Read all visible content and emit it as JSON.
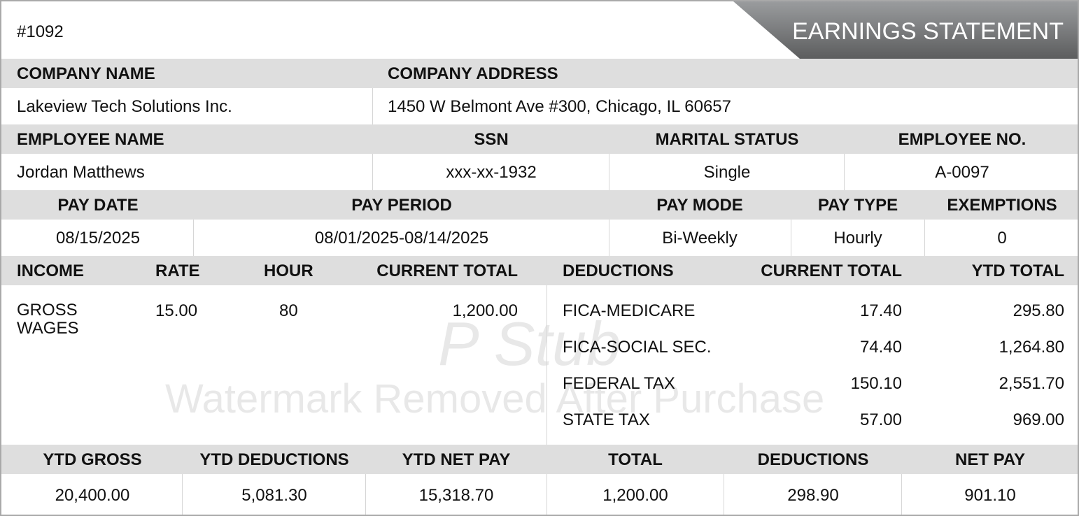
{
  "doc_number": "#1092",
  "title": "EARNINGS STATEMENT",
  "company": {
    "name_label": "COMPANY NAME",
    "address_label": "COMPANY ADDRESS",
    "name": "Lakeview Tech Solutions Inc.",
    "address": "1450 W Belmont Ave #300, Chicago, IL 60657"
  },
  "employee": {
    "name_label": "EMPLOYEE NAME",
    "ssn_label": "SSN",
    "marital_label": "MARITAL STATUS",
    "number_label": "EMPLOYEE NO.",
    "name": "Jordan Matthews",
    "ssn": "xxx-xx-1932",
    "marital": "Single",
    "number": "A-0097"
  },
  "pay": {
    "date_label": "PAY DATE",
    "period_label": "PAY PERIOD",
    "mode_label": "PAY MODE",
    "type_label": "PAY TYPE",
    "exemptions_label": "EXEMPTIONS",
    "date": "08/15/2025",
    "period": "08/01/2025-08/14/2025",
    "mode": "Bi-Weekly",
    "type": "Hourly",
    "exemptions": "0"
  },
  "income": {
    "headers": [
      "INCOME",
      "RATE",
      "HOUR",
      "CURRENT TOTAL"
    ],
    "rows": [
      {
        "name_line1": "GROSS",
        "name_line2": "WAGES",
        "rate": "15.00",
        "hour": "80",
        "current": "1,200.00"
      }
    ]
  },
  "deductions": {
    "headers": [
      "DEDUCTIONS",
      "CURRENT TOTAL",
      "YTD TOTAL"
    ],
    "rows": [
      {
        "name": "FICA-MEDICARE",
        "current": "17.40",
        "ytd": "295.80"
      },
      {
        "name": "FICA-SOCIAL SEC.",
        "current": "74.40",
        "ytd": "1,264.80"
      },
      {
        "name": "FEDERAL TAX",
        "current": "150.10",
        "ytd": "2,551.70"
      },
      {
        "name": "STATE TAX",
        "current": "57.00",
        "ytd": "969.00"
      }
    ]
  },
  "summary": {
    "headers": [
      "YTD GROSS",
      "YTD DEDUCTIONS",
      "YTD NET PAY",
      "TOTAL",
      "DEDUCTIONS",
      "NET PAY"
    ],
    "values": [
      "20,400.00",
      "5,081.30",
      "15,318.70",
      "1,200.00",
      "298.90",
      "901.10"
    ]
  },
  "watermark": {
    "line1": "P Stub",
    "line2": "Watermark Removed After Purchase"
  }
}
